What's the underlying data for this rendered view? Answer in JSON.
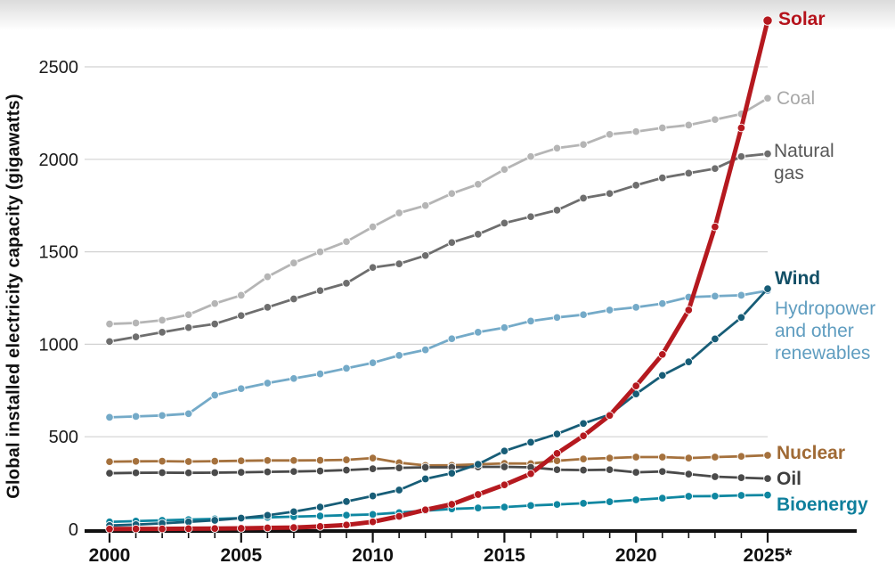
{
  "chart_data": {
    "type": "line",
    "title": "",
    "ylabel": "Global installed electricity capacity (gigawatts)",
    "xlabel": "",
    "x": [
      2000,
      2001,
      2002,
      2003,
      2004,
      2005,
      2006,
      2007,
      2008,
      2009,
      2010,
      2011,
      2012,
      2013,
      2014,
      2015,
      2016,
      2017,
      2018,
      2019,
      2020,
      2021,
      2022,
      2023,
      2024,
      2025
    ],
    "x_tick_years": [
      2000,
      2005,
      2010,
      2015,
      2020,
      2025
    ],
    "x_tick_labels": [
      "2000",
      "2005",
      "2010",
      "2015",
      "2020",
      "2025*"
    ],
    "yticks": [
      0,
      500,
      1000,
      1500,
      2000,
      2500
    ],
    "ytick_labels": [
      "0",
      "500",
      "1000",
      "1500",
      "2000",
      "2500"
    ],
    "ylim": [
      0,
      2790
    ],
    "grid": "horizontal",
    "legend_position": "right-end-labels",
    "axis_color": "#111111",
    "gridline_color": "#d2d2d2",
    "series": [
      {
        "id": "coal",
        "name": "Coal",
        "label_lines": [
          "Coal"
        ],
        "color": "#b5b5b5",
        "label_color": "#a8a8a8",
        "bold": false,
        "values": [
          1110,
          1115,
          1130,
          1160,
          1220,
          1265,
          1365,
          1440,
          1500,
          1555,
          1635,
          1710,
          1750,
          1815,
          1865,
          1945,
          2015,
          2060,
          2080,
          2135,
          2150,
          2170,
          2185,
          2215,
          2245,
          2330
        ]
      },
      {
        "id": "natural_gas",
        "name": "Natural gas",
        "label_lines": [
          "Natural",
          "gas"
        ],
        "color": "#6e6e6e",
        "label_color": "#585858",
        "bold": false,
        "values": [
          1015,
          1040,
          1065,
          1090,
          1110,
          1155,
          1200,
          1245,
          1290,
          1330,
          1415,
          1435,
          1480,
          1550,
          1595,
          1655,
          1690,
          1725,
          1790,
          1815,
          1860,
          1900,
          1925,
          1950,
          2015,
          2030
        ]
      },
      {
        "id": "hydropower",
        "name": "Hydropower and other renewables",
        "label_lines": [
          "Hydropower",
          "and other",
          "renewables"
        ],
        "color": "#74aac8",
        "label_color": "#5f9dc0",
        "bold": false,
        "values": [
          605,
          610,
          615,
          625,
          725,
          760,
          790,
          815,
          840,
          870,
          900,
          940,
          970,
          1030,
          1065,
          1090,
          1125,
          1145,
          1160,
          1185,
          1200,
          1220,
          1255,
          1260,
          1265,
          1290
        ]
      },
      {
        "id": "nuclear",
        "name": "Nuclear",
        "label_lines": [
          "Nuclear"
        ],
        "color": "#a5713d",
        "label_color": "#a06a35",
        "bold": true,
        "values": [
          365,
          367,
          368,
          366,
          368,
          370,
          372,
          372,
          373,
          375,
          385,
          360,
          345,
          346,
          351,
          356,
          355,
          370,
          380,
          385,
          390,
          390,
          385,
          390,
          394,
          400
        ]
      },
      {
        "id": "oil",
        "name": "Oil",
        "label_lines": [
          "Oil"
        ],
        "color": "#4a4a4a",
        "label_color": "#3f3f3f",
        "bold": true,
        "values": [
          303,
          305,
          306,
          305,
          306,
          308,
          310,
          312,
          315,
          320,
          327,
          332,
          335,
          335,
          337,
          337,
          335,
          322,
          320,
          322,
          308,
          312,
          298,
          284,
          279,
          274
        ]
      },
      {
        "id": "bioenergy",
        "name": "Bioenergy",
        "label_lines": [
          "Bioenergy"
        ],
        "color": "#0f87a1",
        "label_color": "#0e7f9c",
        "bold": true,
        "values": [
          40,
          44,
          48,
          52,
          56,
          60,
          64,
          68,
          72,
          76,
          80,
          90,
          100,
          110,
          115,
          120,
          128,
          134,
          140,
          149,
          159,
          168,
          178,
          179,
          183,
          185
        ]
      },
      {
        "id": "wind",
        "name": "Wind",
        "label_lines": [
          "Wind"
        ],
        "color": "#175d77",
        "label_color": "#124f66",
        "bold": true,
        "values": [
          20,
          25,
          32,
          40,
          48,
          60,
          75,
          95,
          120,
          150,
          180,
          212,
          272,
          303,
          351,
          423,
          470,
          515,
          572,
          620,
          731,
          832,
          905,
          1029,
          1145,
          1300
        ]
      },
      {
        "id": "solar",
        "name": "Solar",
        "label_lines": [
          "Solar"
        ],
        "color": "#b5191f",
        "label_color": "#b5121b",
        "bold": true,
        "values": [
          1,
          2,
          2,
          3,
          4,
          5,
          7,
          9,
          15,
          23,
          40,
          70,
          105,
          135,
          188,
          240,
          300,
          410,
          505,
          615,
          775,
          945,
          1185,
          1635,
          2170,
          2750
        ]
      }
    ],
    "footnote_marker": "* = estimate/projection year label shown as 2025*"
  }
}
